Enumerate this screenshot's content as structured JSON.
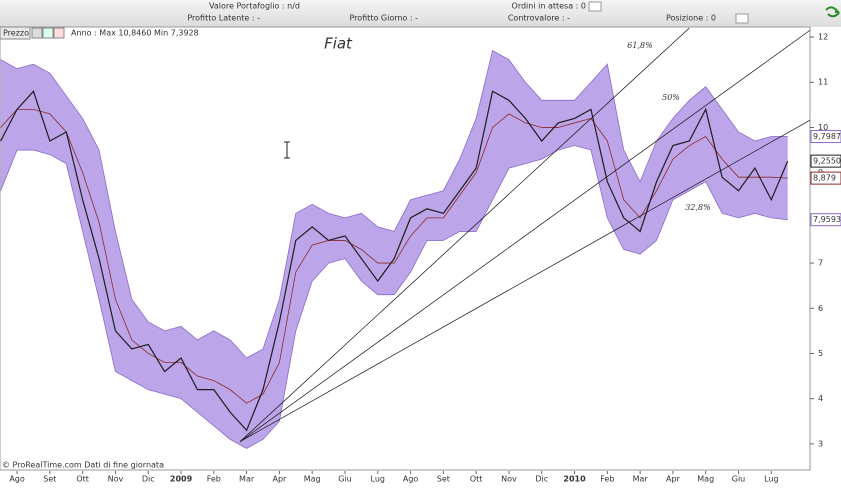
{
  "header": {
    "fields": [
      "Valore Portafoglio : n/d",
      "Ordini in attesa : 0",
      "Profitto Latente : -",
      "Profitto Giorno : -",
      "Controvalore : -",
      "Posizione : 0"
    ]
  },
  "toolbar": {
    "label": "Prezzo",
    "info": "Anno : Max 10,8460 Min 7,3928"
  },
  "footer": "© ProRealTime.com Dati di fine giornata",
  "chart_data": {
    "type": "line",
    "title": "Fiat",
    "x": [
      -0.5,
      0,
      0.5,
      1,
      1.5,
      2,
      2.5,
      3,
      3.5,
      4,
      4.5,
      5,
      5.5,
      6,
      6.5,
      7,
      7.5,
      8,
      8.5,
      9,
      9.5,
      10,
      10.5,
      11,
      11.5,
      12,
      12.5,
      13,
      13.5,
      14,
      14.5,
      15,
      15.5,
      16,
      16.5,
      17,
      17.5,
      18,
      18.5,
      19,
      19.5,
      20,
      20.5,
      21,
      21.5,
      22,
      22.5,
      23,
      23.5
    ],
    "series": [
      {
        "name": "Prezzo",
        "color": "#1e1e1e",
        "end_label": "9,2550",
        "values": [
          9.7,
          10.4,
          10.8,
          9.7,
          9.9,
          8.4,
          7.1,
          5.5,
          5.1,
          5.2,
          4.6,
          4.9,
          4.2,
          4.2,
          3.7,
          3.3,
          4.2,
          5.7,
          7.5,
          7.8,
          7.5,
          7.6,
          7.1,
          6.6,
          7.1,
          8.0,
          8.2,
          8.1,
          8.6,
          9.1,
          10.8,
          10.6,
          10.2,
          9.7,
          10.1,
          10.2,
          10.4,
          8.8,
          8.0,
          7.7,
          8.8,
          9.6,
          9.7,
          10.4,
          8.9,
          8.6,
          9.1,
          8.4,
          9.255
        ]
      },
      {
        "name": "Banda superiore",
        "color": "#8a6cc9",
        "end_label": "9,7987",
        "values": [
          11.5,
          11.3,
          11.4,
          11.2,
          10.7,
          10.2,
          9.5,
          7.7,
          6.2,
          5.7,
          5.5,
          5.6,
          5.3,
          5.5,
          5.3,
          4.9,
          5.1,
          6.2,
          8.1,
          8.3,
          8.1,
          8.0,
          8.1,
          7.8,
          7.7,
          8.4,
          8.5,
          8.6,
          9.3,
          10.2,
          11.7,
          11.5,
          11.0,
          10.6,
          10.6,
          10.6,
          11.0,
          11.4,
          9.5,
          8.8,
          9.7,
          10.2,
          10.6,
          10.9,
          10.4,
          9.9,
          9.7,
          9.8,
          9.7987
        ]
      },
      {
        "name": "Banda inferiore",
        "color": "#8a6cc9",
        "end_label": "7,9593",
        "values": [
          8.6,
          9.5,
          9.5,
          9.4,
          9.2,
          7.7,
          6.2,
          4.6,
          4.4,
          4.2,
          4.1,
          4.0,
          3.7,
          3.4,
          3.1,
          2.9,
          3.1,
          3.5,
          5.5,
          6.6,
          7.0,
          7.1,
          6.6,
          6.3,
          6.3,
          6.8,
          7.5,
          7.5,
          7.7,
          7.7,
          8.4,
          9.1,
          9.2,
          9.3,
          9.5,
          9.6,
          9.5,
          8.0,
          7.3,
          7.2,
          7.5,
          8.4,
          8.6,
          8.8,
          8.1,
          8.0,
          8.1,
          8.0,
          7.9593
        ]
      },
      {
        "name": "Media",
        "color": "#8b2a2a",
        "end_label": "8,879",
        "values": [
          10.0,
          10.4,
          10.4,
          10.3,
          9.9,
          9.0,
          7.9,
          6.2,
          5.3,
          5.0,
          4.8,
          4.8,
          4.5,
          4.4,
          4.2,
          3.9,
          4.1,
          4.8,
          6.8,
          7.4,
          7.5,
          7.5,
          7.3,
          7.0,
          7.0,
          7.6,
          8.0,
          8.0,
          8.5,
          9.0,
          10.0,
          10.3,
          10.1,
          10.0,
          10.0,
          10.1,
          10.2,
          9.7,
          8.4,
          8.0,
          8.6,
          9.3,
          9.6,
          9.8,
          9.3,
          8.9,
          8.9,
          8.9,
          8.879
        ]
      }
    ],
    "fan_lines": [
      {
        "label": "61,8%",
        "x": [
          6.8,
          20.5
        ],
        "values": [
          3.05,
          12.2
        ]
      },
      {
        "label": "50%",
        "x": [
          6.8,
          24.18
        ],
        "values": [
          3.05,
          12.15
        ]
      },
      {
        "label": "32,8%",
        "x": [
          6.8,
          24.18
        ],
        "values": [
          3.05,
          10.16
        ]
      }
    ],
    "xlim": [
      -0.52,
      24.18
    ],
    "ylim": [
      2.4,
      12.2
    ],
    "xticks": [
      {
        "value": 0,
        "label": "Ago"
      },
      {
        "value": 1,
        "label": "Set"
      },
      {
        "value": 2,
        "label": "Ott"
      },
      {
        "value": 3,
        "label": "Nov"
      },
      {
        "value": 4,
        "label": "Dic"
      },
      {
        "value": 5,
        "label": "2009"
      },
      {
        "value": 6,
        "label": "Feb"
      },
      {
        "value": 7,
        "label": "Mar"
      },
      {
        "value": 8,
        "label": "Apr"
      },
      {
        "value": 9,
        "label": "Mag"
      },
      {
        "value": 10,
        "label": "Giu"
      },
      {
        "value": 11,
        "label": "Lug"
      },
      {
        "value": 12,
        "label": "Ago"
      },
      {
        "value": 13,
        "label": "Set"
      },
      {
        "value": 14,
        "label": "Ott"
      },
      {
        "value": 15,
        "label": "Nov"
      },
      {
        "value": 16,
        "label": "Dic"
      },
      {
        "value": 17,
        "label": "2010"
      },
      {
        "value": 18,
        "label": "Feb"
      },
      {
        "value": 19,
        "label": "Mar"
      },
      {
        "value": 20,
        "label": "Apr"
      },
      {
        "value": 21,
        "label": "Mag"
      },
      {
        "value": 22,
        "label": "Giu"
      },
      {
        "value": 23,
        "label": "Lug"
      }
    ],
    "yticks": [
      3,
      4,
      5,
      6,
      7,
      8,
      9,
      10,
      11,
      12
    ]
  }
}
